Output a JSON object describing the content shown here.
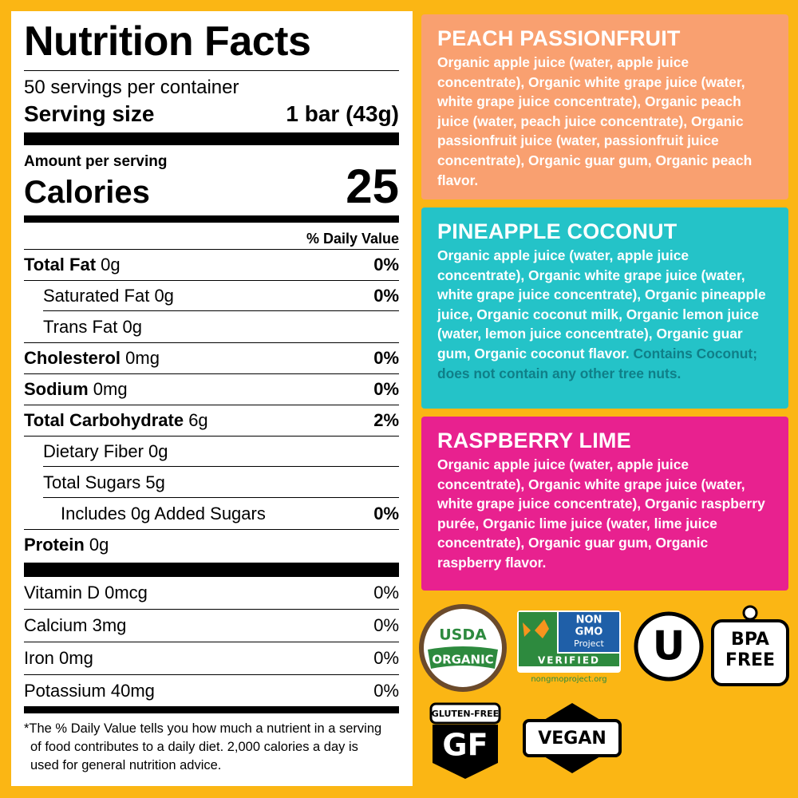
{
  "nutrition": {
    "title": "Nutrition Facts",
    "servings": "50 servings per container",
    "serving_size_label": "Serving size",
    "serving_size_value": "1 bar (43g)",
    "amount_per_serving": "Amount per serving",
    "calories_label": "Calories",
    "calories_value": "25",
    "daily_value_header": "% Daily Value",
    "rows": [
      {
        "label": "Total Fat",
        "amount": "0g",
        "dv": "0%"
      },
      {
        "label": "Saturated Fat",
        "amount": "0g",
        "dv": "0%"
      },
      {
        "label": "Trans Fat",
        "amount": "0g"
      },
      {
        "label": "Cholesterol",
        "amount": "0mg",
        "dv": "0%"
      },
      {
        "label": "Sodium",
        "amount": "0mg",
        "dv": "0%"
      },
      {
        "label": "Total Carbohydrate",
        "amount": "6g",
        "dv": "2%"
      },
      {
        "label": "Dietary Fiber",
        "amount": "0g"
      },
      {
        "label": "Total Sugars",
        "amount": "5g"
      },
      {
        "label": "Includes 0g Added Sugars",
        "dv": "0%"
      },
      {
        "label": "Protein",
        "amount": "0g"
      }
    ],
    "vitamins": [
      {
        "label": "Vitamin D",
        "amount": "0mcg",
        "dv": "0%"
      },
      {
        "label": "Calcium",
        "amount": "3mg",
        "dv": "0%"
      },
      {
        "label": "Iron",
        "amount": "0mg",
        "dv": "0%"
      },
      {
        "label": "Potassium",
        "amount": "40mg",
        "dv": "0%"
      }
    ],
    "footnote": "*The % Daily Value tells you how much a nutrient in a serving of food contributes to a daily diet. 2,000 calories a day is used for general nutrition advice."
  },
  "flavors": [
    {
      "name": "PEACH PASSIONFRUIT",
      "ingredients": "Organic apple juice (water, apple juice concentrate), Organic white grape juice (water, white grape juice concentrate), Organic peach juice (water, peach juice concentrate), Organic passionfruit juice (water, passionfruit juice concentrate), Organic guar gum, Organic peach flavor."
    },
    {
      "name": "PINEAPPLE COCONUT",
      "ingredients": "Organic apple juice (water, apple juice concentrate), Organic white grape juice (water, white grape juice concentrate), Organic pineapple juice, Organic coconut milk, Organic lemon juice (water, lemon juice concentrate), Organic guar gum, Organic coconut flavor.",
      "note": "Contains Coconut; does not contain any other tree nuts."
    },
    {
      "name": "RASPBERRY LIME",
      "ingredients": "Organic apple juice (water, apple juice concentrate), Organic white grape juice (water, white grape juice concentrate), Organic raspberry purée, Organic lime juice (water, lime juice concentrate), Organic guar gum, Organic raspberry flavor."
    }
  ],
  "badges": {
    "usda": [
      "USDA",
      "ORGANIC"
    ],
    "non_gmo": [
      "NON",
      "GMO",
      "Project",
      "VERIFIED",
      "nongmoproject.org"
    ],
    "kosher": "U",
    "bpa": [
      "BPA",
      "FREE"
    ],
    "gluten_free": [
      "GLUTEN-FREE",
      "GF"
    ],
    "vegan": "VEGAN"
  }
}
